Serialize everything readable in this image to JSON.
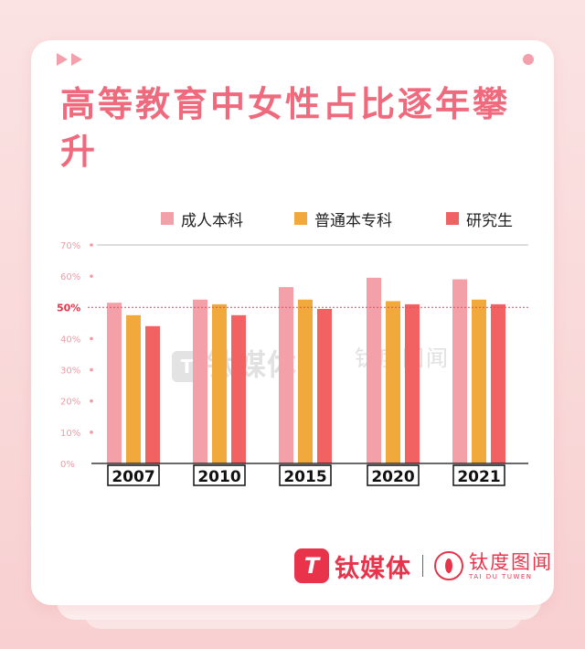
{
  "title": "高等教育中女性占比逐年攀升",
  "brand": {
    "mark": "T",
    "name": "钛媒体",
    "partner": "钛度图闻",
    "partner_sub": "TAI DU TUWEN"
  },
  "colors": {
    "title": "#f06a7e",
    "adult": "#f4a0a8",
    "regular": "#f2a93b",
    "graduate": "#f26262",
    "reference_line": "#e64a5c"
  },
  "chart_data": {
    "type": "bar",
    "categories": [
      "2007",
      "2010",
      "2015",
      "2020",
      "2021"
    ],
    "series": [
      {
        "name": "成人本科",
        "values": [
          51.5,
          52.5,
          56.5,
          59.5,
          59
        ]
      },
      {
        "name": "普通本专科",
        "values": [
          47.5,
          51,
          52.5,
          52,
          52.5
        ]
      },
      {
        "name": "研究生",
        "values": [
          44,
          47.5,
          49.5,
          51,
          51
        ]
      }
    ],
    "ylim": [
      0,
      70
    ],
    "yticks": [
      "0%",
      "10%",
      "20%",
      "30%",
      "40%",
      "50%",
      "60%",
      "70%"
    ],
    "reference": {
      "value": 50,
      "label": "50%"
    },
    "legend_position": "top-right",
    "grid": false
  }
}
